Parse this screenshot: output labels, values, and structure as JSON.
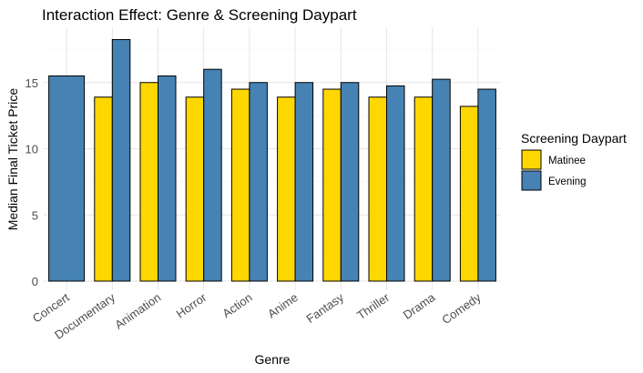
{
  "chart_data": {
    "type": "bar",
    "title": "Interaction Effect: Genre & Screening Daypart",
    "xlabel": "Genre",
    "ylabel": "Median Final Ticket Price",
    "categories": [
      "Concert",
      "Documentary",
      "Animation",
      "Horror",
      "Action",
      "Anime",
      "Fantasy",
      "Thriller",
      "Drama",
      "Comedy"
    ],
    "series": [
      {
        "name": "Matinee",
        "color": "#FFD700",
        "values": [
          null,
          13.9,
          15.0,
          13.9,
          14.5,
          13.9,
          14.5,
          13.9,
          13.9,
          13.2
        ]
      },
      {
        "name": "Evening",
        "color": "#4682B4",
        "values": [
          15.5,
          18.25,
          15.5,
          16.0,
          15.0,
          15.0,
          15.0,
          14.75,
          15.25,
          14.5
        ]
      }
    ],
    "ylim": [
      0,
      19
    ],
    "yticks": [
      0,
      5,
      10,
      15
    ],
    "grid": true,
    "legend": {
      "title": "Screening Daypart",
      "position": "right"
    }
  }
}
